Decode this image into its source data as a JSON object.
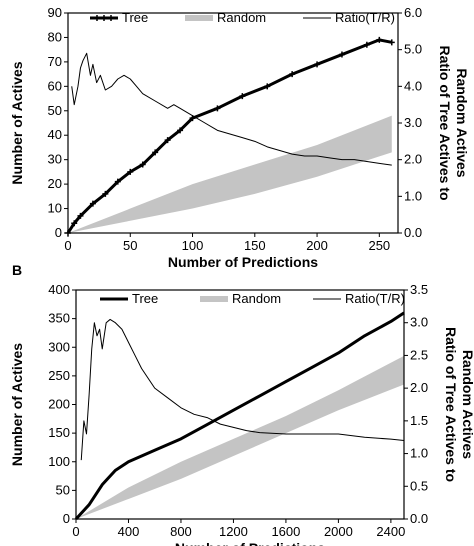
{
  "chart_data": [
    {
      "type": "line",
      "panel_label": "",
      "xlabel": "Number of Predictions",
      "ylabel": "Number of Actives",
      "y2label": "Ratio of Tree Actives to Random Actives",
      "xlim": [
        0,
        265
      ],
      "ylim": [
        0,
        90
      ],
      "y2lim": [
        0,
        6
      ],
      "xticks": [
        0,
        50,
        100,
        150,
        200,
        250
      ],
      "yticks": [
        0,
        10,
        20,
        30,
        40,
        50,
        60,
        70,
        80,
        90
      ],
      "y2ticks": [
        "0.0",
        "1.0",
        "2.0",
        "3.0",
        "4.0",
        "5.0",
        "6.0"
      ],
      "legend": [
        "Tree",
        "Random",
        "Ratio(T/R)"
      ],
      "legend_position": "top",
      "grid": false,
      "series": [
        {
          "name": "Tree",
          "axis": "left",
          "style": "thick-black-plus",
          "x": [
            0,
            5,
            10,
            20,
            30,
            40,
            50,
            60,
            70,
            80,
            90,
            100,
            120,
            140,
            160,
            180,
            200,
            220,
            240,
            250,
            260
          ],
          "y": [
            0,
            4,
            7,
            12,
            16,
            21,
            25,
            28,
            33,
            38,
            42,
            47,
            51,
            56,
            60,
            65,
            69,
            73,
            77,
            79,
            78
          ]
        },
        {
          "name": "Random",
          "axis": "left",
          "style": "gray-band",
          "x": [
            0,
            50,
            100,
            150,
            200,
            260
          ],
          "y_low": [
            0,
            5,
            10,
            16,
            23,
            33
          ],
          "y_high": [
            0,
            10,
            20,
            28,
            36,
            48
          ]
        },
        {
          "name": "Ratio(T/R)",
          "axis": "right",
          "style": "thin-black",
          "x": [
            3,
            5,
            8,
            10,
            12,
            15,
            18,
            20,
            23,
            26,
            30,
            35,
            40,
            45,
            50,
            55,
            60,
            70,
            80,
            85,
            90,
            100,
            110,
            120,
            130,
            140,
            150,
            160,
            170,
            180,
            190,
            200,
            210,
            220,
            230,
            240,
            250,
            260
          ],
          "y": [
            4.0,
            3.5,
            4.0,
            4.5,
            4.7,
            4.9,
            4.3,
            4.6,
            4.1,
            4.3,
            3.9,
            4.0,
            4.2,
            4.3,
            4.2,
            4.0,
            3.8,
            3.6,
            3.4,
            3.5,
            3.4,
            3.2,
            3.0,
            2.8,
            2.7,
            2.6,
            2.5,
            2.35,
            2.25,
            2.15,
            2.1,
            2.1,
            2.05,
            2.0,
            2.0,
            1.95,
            1.9,
            1.85
          ]
        }
      ]
    },
    {
      "type": "line",
      "panel_label": "B",
      "xlabel": "Number of Predictions",
      "ylabel": "Number of Actives",
      "y2label": "Ratio of Tree Actives to Random Actives",
      "xlim": [
        0,
        2500
      ],
      "ylim": [
        0,
        400
      ],
      "y2lim": [
        0,
        3.5
      ],
      "xticks": [
        0,
        400,
        800,
        1200,
        1600,
        2000,
        2400
      ],
      "yticks": [
        0,
        50,
        100,
        150,
        200,
        250,
        300,
        350,
        400
      ],
      "y2ticks": [
        "0.0",
        "0.5",
        "1.0",
        "1.5",
        "2.0",
        "2.5",
        "3.0",
        "3.5"
      ],
      "legend": [
        "Tree",
        "Random",
        "Ratio(T/R)"
      ],
      "legend_position": "top",
      "grid": false,
      "series": [
        {
          "name": "Tree",
          "axis": "left",
          "style": "thick-black",
          "x": [
            0,
            100,
            200,
            300,
            400,
            600,
            800,
            1000,
            1200,
            1400,
            1600,
            1800,
            2000,
            2200,
            2400,
            2500
          ],
          "y": [
            0,
            25,
            60,
            85,
            100,
            120,
            140,
            165,
            190,
            215,
            240,
            265,
            290,
            320,
            345,
            360
          ]
        },
        {
          "name": "Random",
          "axis": "left",
          "style": "gray-band",
          "x": [
            0,
            400,
            800,
            1200,
            1600,
            2000,
            2500
          ],
          "y_low": [
            0,
            35,
            70,
            110,
            150,
            190,
            235
          ],
          "y_high": [
            0,
            55,
            100,
            140,
            180,
            225,
            285
          ]
        },
        {
          "name": "Ratio(T/R)",
          "axis": "right",
          "style": "thin-black",
          "x": [
            40,
            60,
            80,
            100,
            120,
            140,
            160,
            180,
            200,
            230,
            260,
            300,
            350,
            400,
            450,
            500,
            600,
            700,
            800,
            900,
            1000,
            1100,
            1200,
            1300,
            1400,
            1600,
            1800,
            2000,
            2200,
            2400,
            2500
          ],
          "y": [
            0.9,
            1.5,
            1.3,
            1.9,
            2.6,
            3.0,
            2.8,
            2.9,
            2.6,
            3.0,
            3.05,
            3.0,
            2.9,
            2.7,
            2.5,
            2.3,
            2.0,
            1.85,
            1.7,
            1.6,
            1.55,
            1.45,
            1.4,
            1.35,
            1.32,
            1.3,
            1.3,
            1.3,
            1.25,
            1.22,
            1.2
          ]
        }
      ]
    }
  ]
}
